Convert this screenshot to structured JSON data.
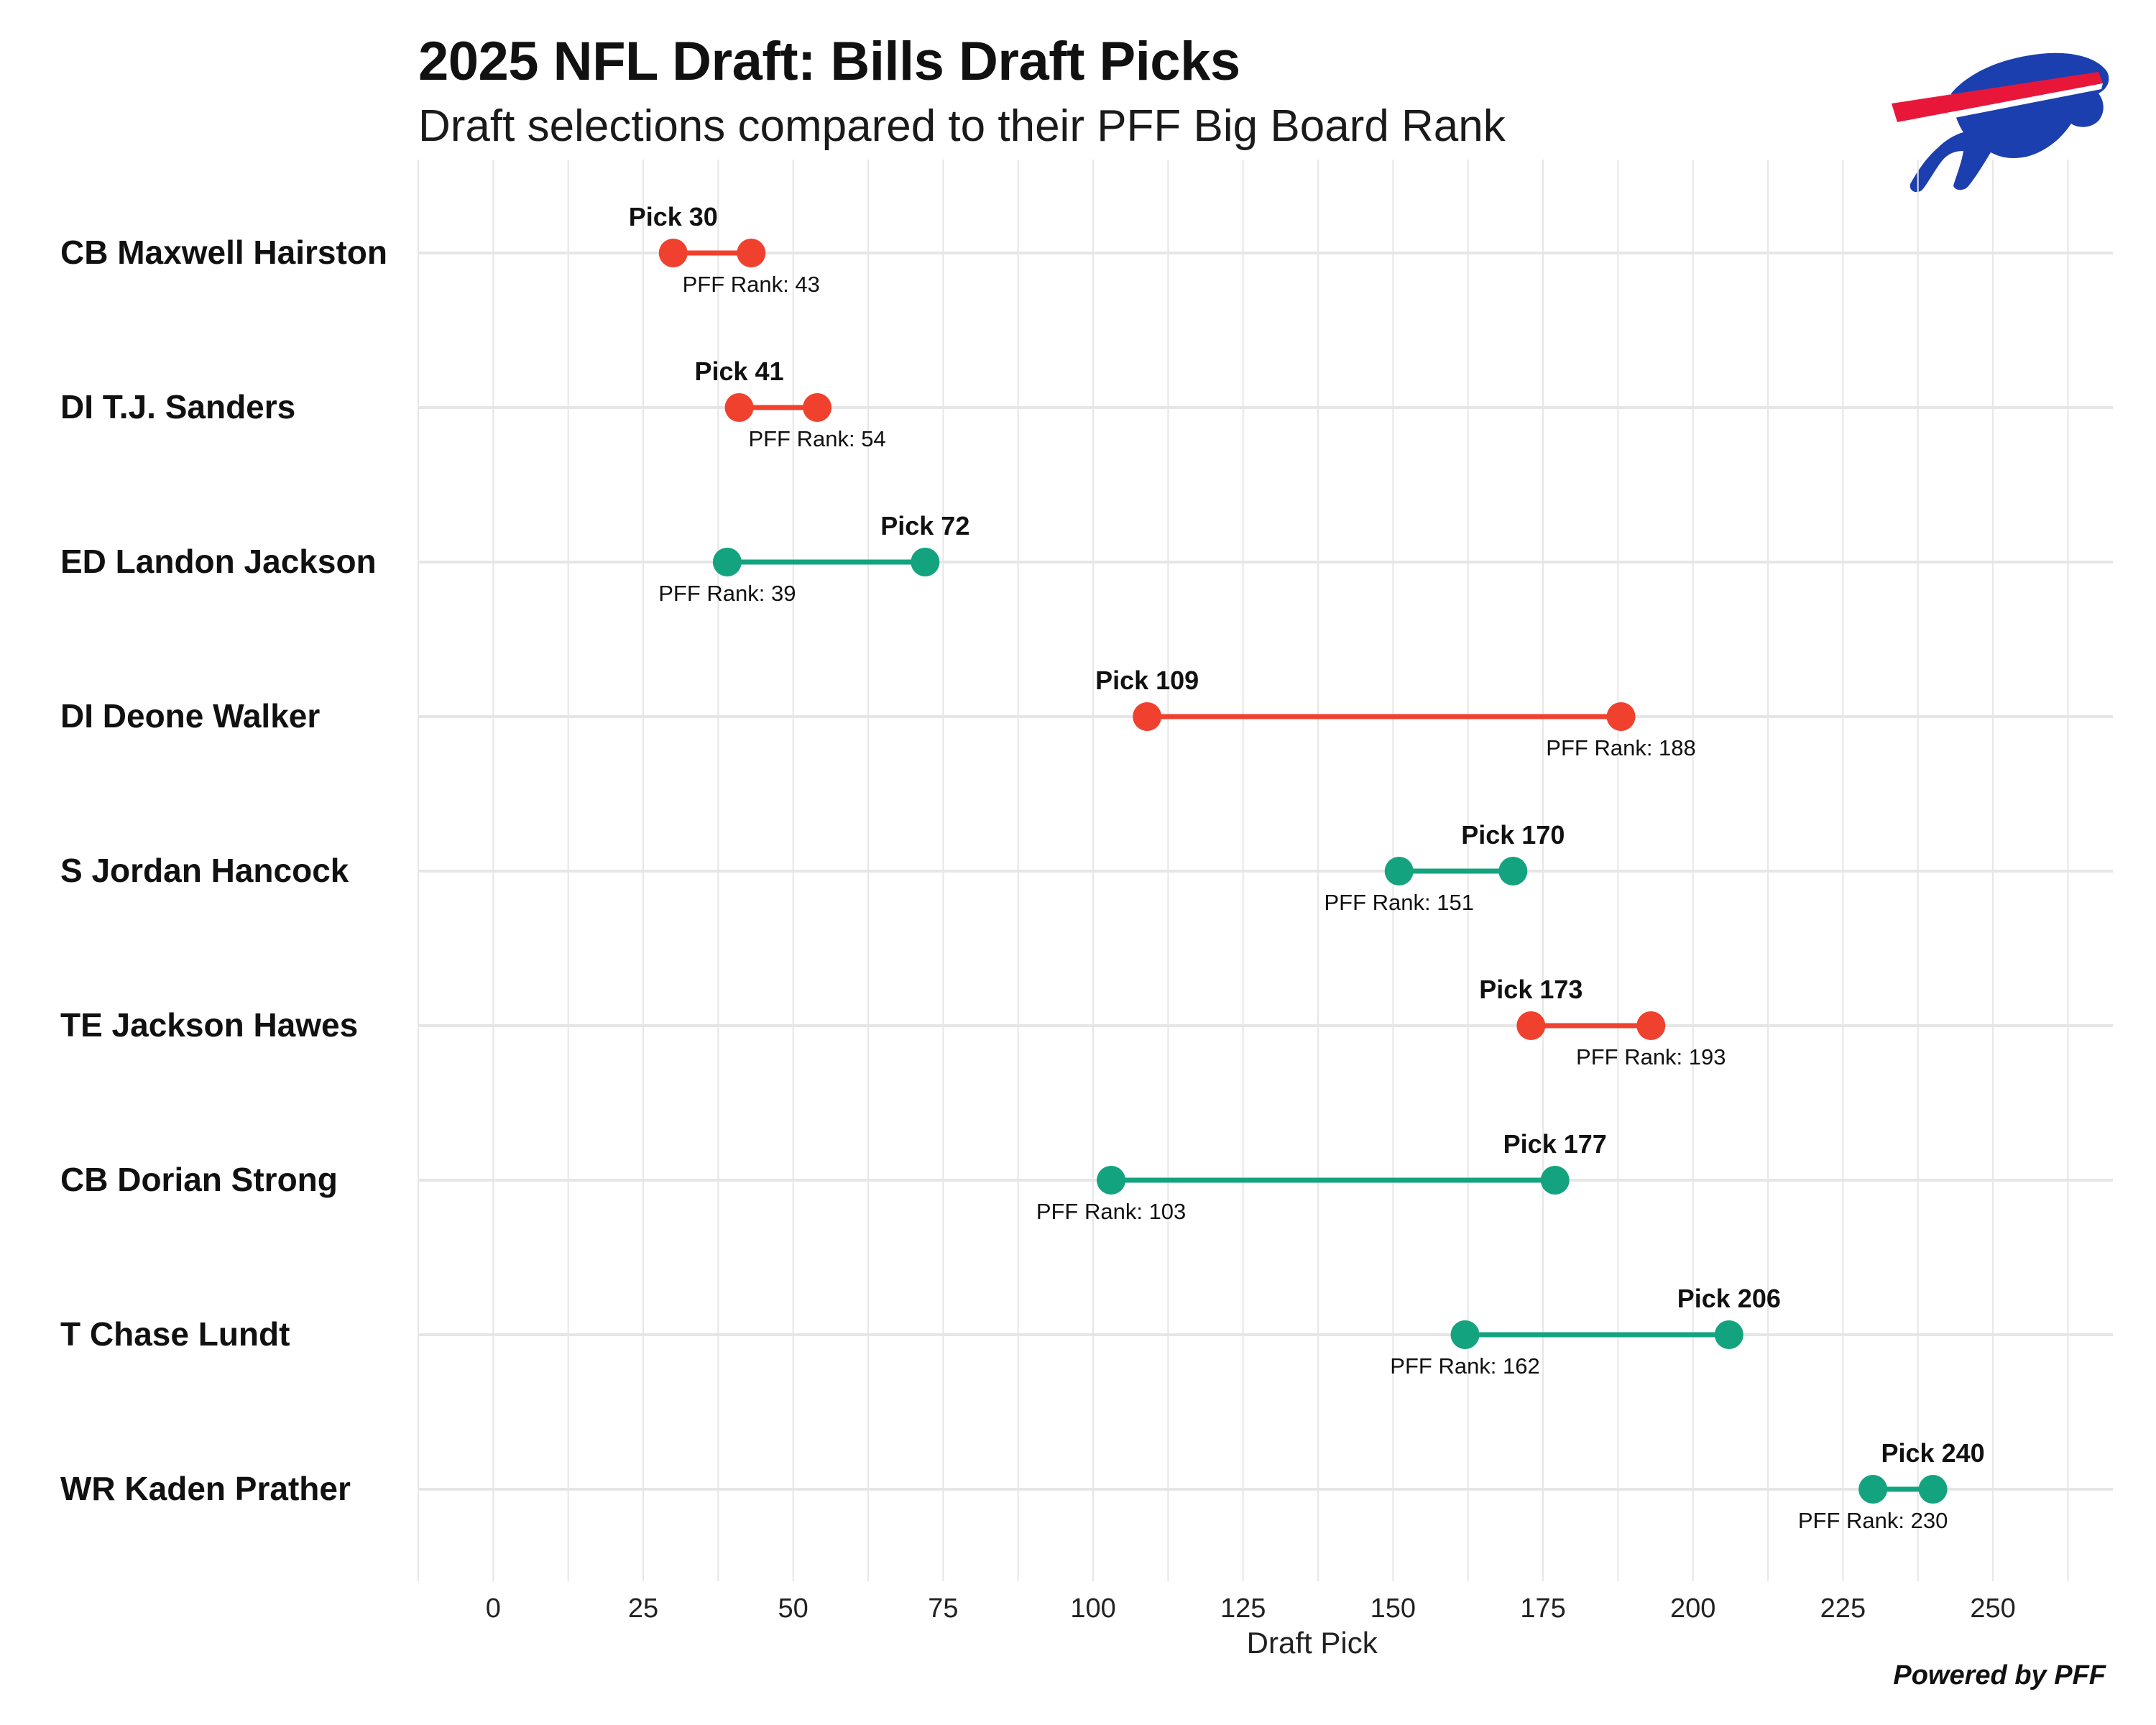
{
  "header": {
    "title": "2025 NFL Draft: Bills Draft Picks",
    "subtitle": "Draft selections compared to their PFF Big Board Rank"
  },
  "footer": {
    "credit": "Powered by PFF"
  },
  "logo": {
    "icon": "bills-buffalo-logo-icon",
    "primary": "#1B3FAE",
    "stripe": "#E8173A"
  },
  "colors": {
    "reach": "#F0402E",
    "value": "#14A37F",
    "grid": "#E6E6E6"
  },
  "chart_data": {
    "type": "dumbbell",
    "xlabel": "Draft Pick",
    "xlim": [
      -12.5,
      270
    ],
    "xticks": [
      0,
      25,
      50,
      75,
      100,
      125,
      150,
      175,
      200,
      225,
      250
    ],
    "pick_prefix": "Pick ",
    "rank_prefix": "PFF Rank: ",
    "players": [
      {
        "name": "CB Maxwell Hairston",
        "pick": 30,
        "pff_rank": 43
      },
      {
        "name": "DI T.J. Sanders",
        "pick": 41,
        "pff_rank": 54
      },
      {
        "name": "ED Landon Jackson",
        "pick": 72,
        "pff_rank": 39
      },
      {
        "name": "DI Deone Walker",
        "pick": 109,
        "pff_rank": 188
      },
      {
        "name": "S Jordan Hancock",
        "pick": 170,
        "pff_rank": 151
      },
      {
        "name": "TE Jackson Hawes",
        "pick": 173,
        "pff_rank": 193
      },
      {
        "name": "CB Dorian Strong",
        "pick": 177,
        "pff_rank": 103
      },
      {
        "name": "T Chase Lundt",
        "pick": 206,
        "pff_rank": 162
      },
      {
        "name": "WR Kaden Prather",
        "pick": 240,
        "pff_rank": 230
      }
    ]
  }
}
